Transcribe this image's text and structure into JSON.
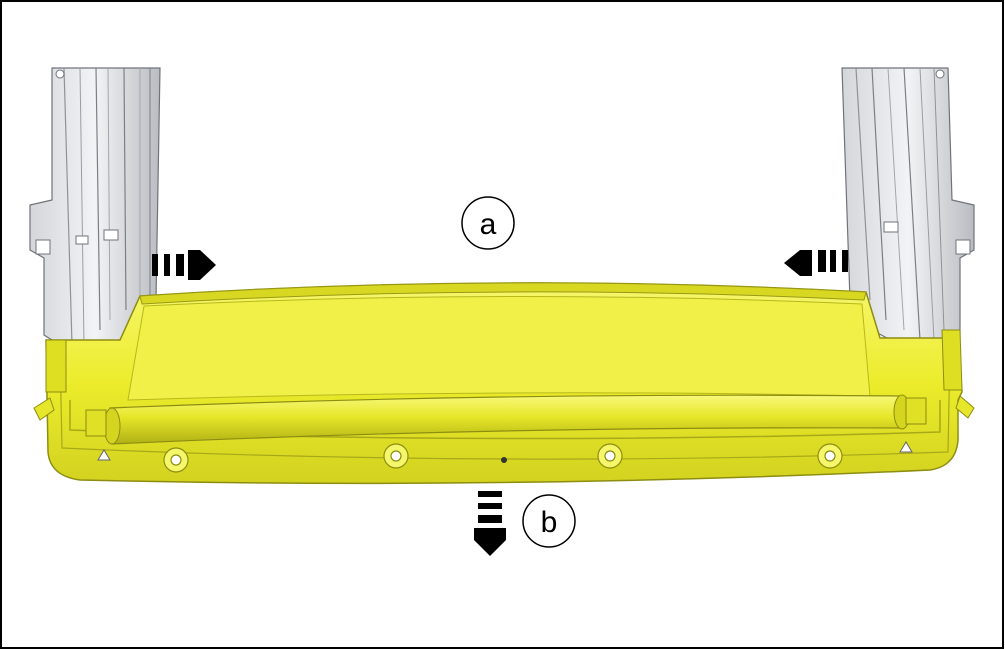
{
  "colors": {
    "frame": "#000000",
    "rail_light": "#e9eaec",
    "rail_mid": "#c9ccd0",
    "rail_dark": "#8f9399",
    "part_yellow": "#ecec2c",
    "part_yellow_light": "#f4f45a",
    "part_yellow_dark": "#b3b31a",
    "arrow": "#000000"
  },
  "callouts": {
    "a": {
      "label": "a"
    },
    "b": {
      "label": "b"
    }
  },
  "icons": {
    "arrow_right": "dashed-arrow-right-icon",
    "arrow_left": "dashed-arrow-left-icon",
    "arrow_down": "dashed-arrow-down-icon"
  }
}
